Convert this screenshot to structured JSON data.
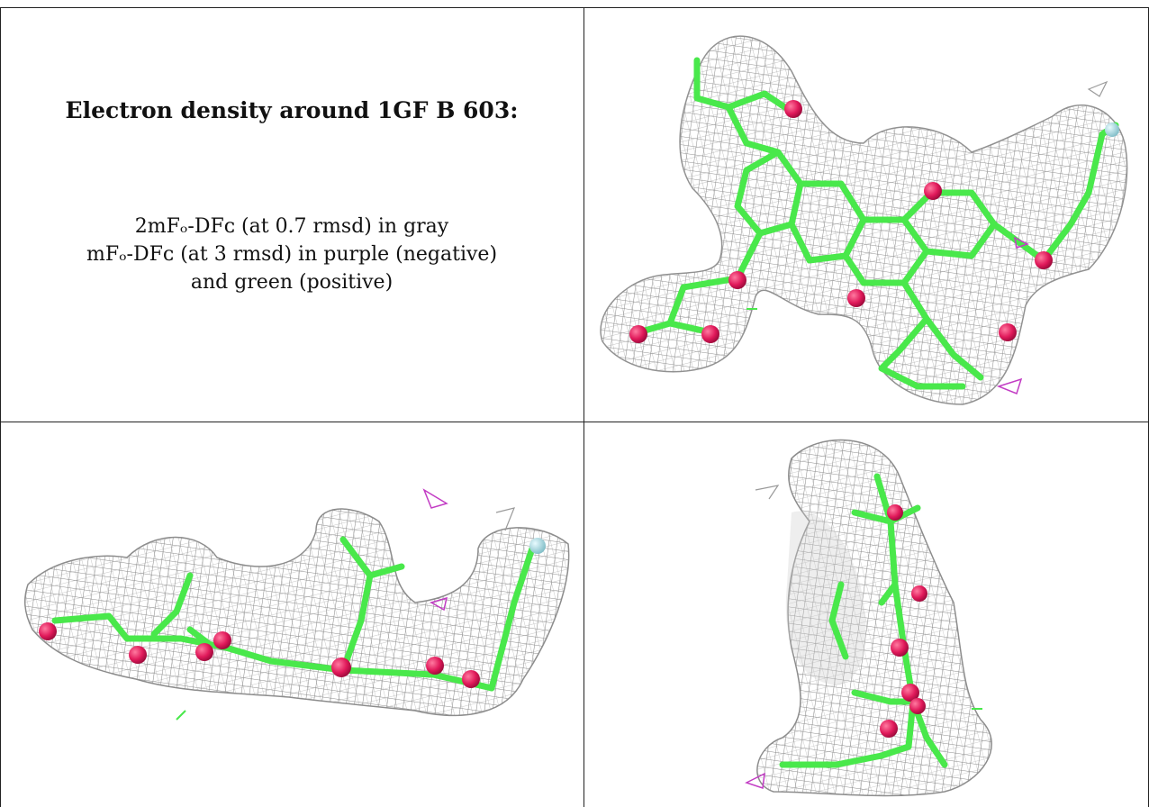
{
  "caption": {
    "title": "Electron density around 1GF B 603:",
    "lines": [
      "2mFₒ-DFᴄ (at 0.7 rmsd) in gray",
      "mFₒ-DFᴄ (at 3 rmsd) in purple (negative)",
      "and green (positive)"
    ]
  },
  "colors": {
    "mesh_gray": "#8c8c8c",
    "carbon_green": "#49e84b",
    "oxygen_red": "#e0195a",
    "halogen_cyan": "#9fd6dd",
    "negative_purple": "#c23cc4",
    "border": "#222222"
  },
  "panels": [
    {
      "name": "view-top-right",
      "icon": "electron-density-mesh-icon"
    },
    {
      "name": "view-bottom-left",
      "icon": "electron-density-mesh-icon"
    },
    {
      "name": "view-bottom-right",
      "icon": "electron-density-mesh-icon"
    }
  ]
}
